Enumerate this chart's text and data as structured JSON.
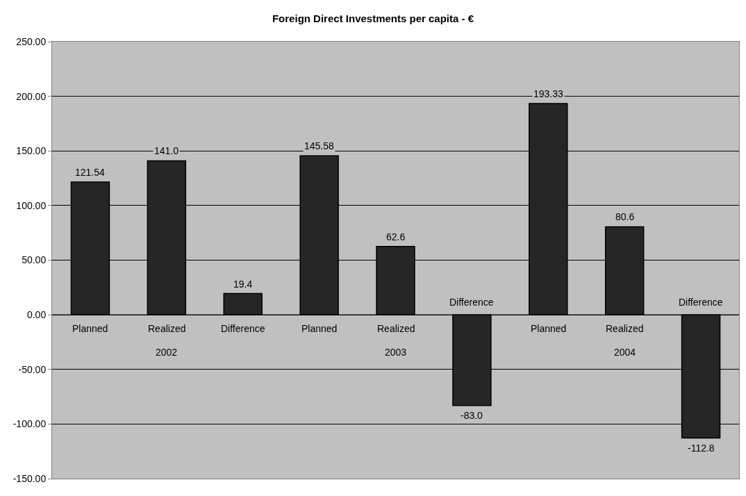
{
  "chart_data": {
    "type": "bar",
    "title": "Foreign Direct Investments per capita - €",
    "categories": [
      "Planned",
      "Realized",
      "Difference",
      "Planned",
      "Realized",
      "Difference",
      "Planned",
      "Realized",
      "Difference"
    ],
    "annotations": [
      "2002",
      "2003",
      "2004"
    ],
    "values": [
      121.54,
      141.0,
      19.4,
      145.58,
      62.6,
      -83.0,
      193.33,
      80.6,
      -112.8
    ],
    "value_labels": [
      "121.54",
      "141.0",
      "19.4",
      "145.58",
      "62.6",
      "-83.0",
      "193.33",
      "80.6",
      "-112.8"
    ],
    "color": "#262626",
    "ylim": [
      -150,
      250
    ],
    "yticks": [
      {
        "value": -150,
        "label": "-150.00"
      },
      {
        "value": -100,
        "label": "-100.00"
      },
      {
        "value": -50,
        "label": "-50.00"
      },
      {
        "value": 0,
        "label": "0.00"
      },
      {
        "value": 50,
        "label": "50.00"
      },
      {
        "value": 100,
        "label": "100.00"
      },
      {
        "value": 150,
        "label": "150.00"
      },
      {
        "value": 200,
        "label": "200.00"
      },
      {
        "value": 250,
        "label": "250.00"
      }
    ],
    "grid": "y",
    "legend": false
  }
}
